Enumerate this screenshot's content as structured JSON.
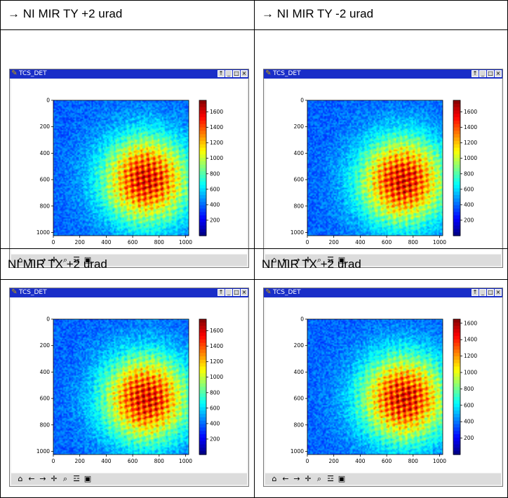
{
  "panels": [
    {
      "caption": "→ NI MIR TY +2 urad",
      "window_title": "TCS_DET"
    },
    {
      "caption": "→ NI MIR TY -2 urad",
      "window_title": "TCS_DET"
    },
    {
      "caption": "NI MIR TX +2 urad",
      "window_title": "TCS_DET"
    },
    {
      "caption": "NI MIR TX +2 urad",
      "window_title": "TCS_DET"
    }
  ],
  "titlebar_controls": [
    "pin-icon",
    "minimize-icon",
    "maximize-icon",
    "close-icon"
  ],
  "toolbar_tools": [
    {
      "name": "home-icon",
      "glyph": "⌂"
    },
    {
      "name": "back-arrow-icon",
      "glyph": "←"
    },
    {
      "name": "forward-arrow-icon",
      "glyph": "→"
    },
    {
      "name": "pan-move-icon",
      "glyph": "✛"
    },
    {
      "name": "zoom-magnifier-icon",
      "glyph": "⌕"
    },
    {
      "name": "configure-subplots-icon",
      "glyph": "☲"
    },
    {
      "name": "save-disk-icon",
      "glyph": "▣"
    }
  ],
  "chart_data": [
    {
      "type": "heatmap",
      "x_ticks": [
        "0",
        "200",
        "400",
        "600",
        "800",
        "1000"
      ],
      "y_ticks": [
        "0",
        "200",
        "400",
        "600",
        "800",
        "1000"
      ],
      "xlim": [
        0,
        1024
      ],
      "ylim": [
        1024,
        0
      ],
      "colorbar_ticks": [
        "200",
        "400",
        "600",
        "800",
        "1000",
        "1200",
        "1400",
        "1600"
      ],
      "colorbar_range": [
        0,
        1750
      ],
      "colormap": "jet",
      "peak": [
        700,
        600
      ]
    },
    {
      "type": "heatmap",
      "x_ticks": [
        "0",
        "200",
        "400",
        "600",
        "800",
        "1000"
      ],
      "y_ticks": [
        "0",
        "200",
        "400",
        "600",
        "800",
        "1000"
      ],
      "xlim": [
        0,
        1024
      ],
      "ylim": [
        1024,
        0
      ],
      "colorbar_ticks": [
        "200",
        "400",
        "600",
        "800",
        "1000",
        "1200",
        "1400",
        "1600"
      ],
      "colorbar_range": [
        0,
        1750
      ],
      "colormap": "jet",
      "peak": [
        720,
        610
      ]
    },
    {
      "type": "heatmap",
      "x_ticks": [
        "0",
        "200",
        "400",
        "600",
        "800",
        "1000"
      ],
      "y_ticks": [
        "0",
        "200",
        "400",
        "600",
        "800",
        "1000"
      ],
      "xlim": [
        0,
        1024
      ],
      "ylim": [
        1024,
        0
      ],
      "colorbar_ticks": [
        "200",
        "400",
        "600",
        "800",
        "1000",
        "1200",
        "1400",
        "1600"
      ],
      "colorbar_range": [
        0,
        1750
      ],
      "colormap": "jet",
      "peak": [
        700,
        600
      ]
    },
    {
      "type": "heatmap",
      "x_ticks": [
        "0",
        "200",
        "400",
        "600",
        "800",
        "1000"
      ],
      "y_ticks": [
        "0",
        "200",
        "400",
        "600",
        "800",
        "1000"
      ],
      "xlim": [
        0,
        1024
      ],
      "ylim": [
        1024,
        0
      ],
      "colorbar_ticks": [
        "200",
        "400",
        "600",
        "800",
        "1000",
        "1200",
        "1400",
        "1600"
      ],
      "colorbar_range": [
        0,
        1650
      ],
      "colormap": "jet",
      "peak": [
        730,
        600
      ]
    }
  ]
}
